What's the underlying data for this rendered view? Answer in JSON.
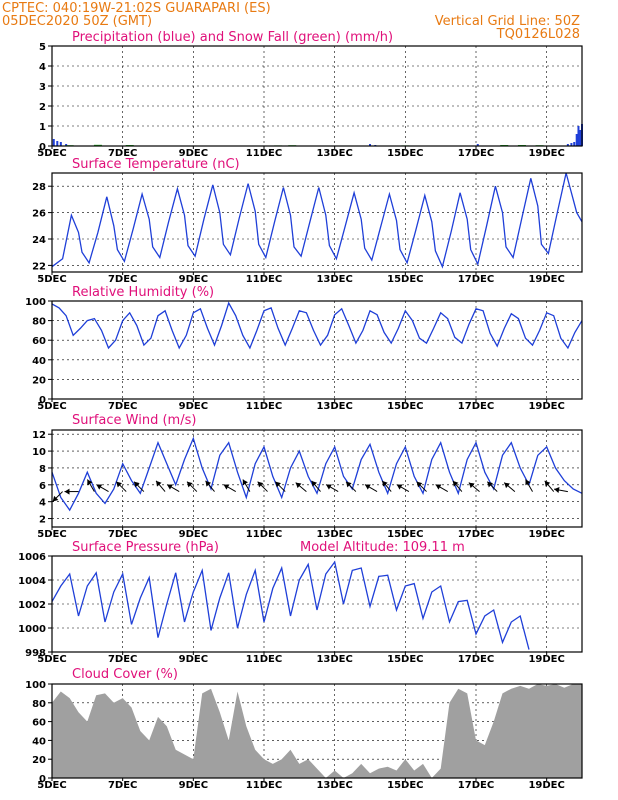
{
  "header": {
    "line1": "CPTEC:  040:19W-21:02S   GUARAPARI (ES)",
    "line2": "05DEC2020 50Z (GMT)",
    "grid_note": "Vertical Grid Line: 50Z",
    "code": "TQ0126L028"
  },
  "colors": {
    "header": "#e87a12",
    "title": "#e0107a",
    "line": "#1f3fd8",
    "snow": "#22aa22",
    "cloud": "#a0a0a0",
    "frame": "#000000"
  },
  "x_axis": {
    "ticks": [
      "5DEC",
      "7DEC",
      "9DEC",
      "11DEC",
      "13DEC",
      "15DEC",
      "17DEC",
      "19DEC"
    ],
    "tick_days": [
      0,
      2,
      4,
      6,
      8,
      10,
      12,
      14
    ],
    "range_days": [
      0,
      15
    ]
  },
  "chart_data": [
    {
      "type": "bar",
      "title": "Precipitation (blue) and Snow Fall (green) (mm/h)",
      "ylim": [
        0,
        5
      ],
      "yticks": [
        "0",
        "1",
        "2",
        "3",
        "4",
        "5"
      ],
      "x_unit": "days since 05DEC",
      "precip_x": [
        0.05,
        0.15,
        0.25,
        0.4,
        9.0,
        9.15,
        12.05,
        14.6,
        14.7,
        14.78,
        14.85,
        14.9,
        14.95,
        15.0
      ],
      "precip": [
        0.35,
        0.25,
        0.2,
        0.1,
        0.1,
        0.05,
        0.1,
        0.1,
        0.15,
        0.2,
        0.6,
        1.0,
        0.8,
        1.1
      ],
      "snow_x": [
        0.5,
        1.3,
        2.2,
        6.4,
        6.8,
        10.0,
        12.8,
        13.3,
        13.8
      ],
      "snow": [
        0.04,
        0.06,
        0.05,
        0.03,
        0.04,
        0.03,
        0.05,
        0.05,
        0.04
      ]
    },
    {
      "type": "line",
      "title": "Surface Temperature (nC)",
      "ylim": [
        21.5,
        29
      ],
      "yticks": [
        "22",
        "24",
        "26",
        "28"
      ],
      "ytick_values": [
        22,
        24,
        26,
        28
      ],
      "x_unit": "days since 05DEC",
      "x": [
        0,
        0.3,
        0.55,
        0.75,
        0.85,
        1.05,
        1.3,
        1.55,
        1.75,
        1.85,
        2.05,
        2.3,
        2.55,
        2.75,
        2.85,
        3.05,
        3.3,
        3.55,
        3.75,
        3.85,
        4.05,
        4.3,
        4.55,
        4.75,
        4.85,
        5.05,
        5.3,
        5.55,
        5.75,
        5.85,
        6.05,
        6.3,
        6.55,
        6.75,
        6.85,
        7.05,
        7.3,
        7.55,
        7.75,
        7.85,
        8.05,
        8.3,
        8.55,
        8.75,
        8.85,
        9.05,
        9.3,
        9.55,
        9.75,
        9.85,
        10.05,
        10.3,
        10.55,
        10.75,
        10.85,
        11.05,
        11.3,
        11.55,
        11.75,
        11.85,
        12.05,
        12.3,
        12.55,
        12.75,
        12.85,
        13.05,
        13.3,
        13.55,
        13.75,
        13.85,
        14.05,
        14.3,
        14.55,
        14.75,
        14.85,
        15.0
      ],
      "y": [
        21.9,
        22.5,
        25.8,
        24.5,
        23.0,
        22.2,
        24.5,
        27.2,
        25.0,
        23.2,
        22.3,
        24.8,
        27.4,
        25.5,
        23.4,
        22.6,
        25.3,
        27.8,
        25.8,
        23.5,
        22.7,
        25.5,
        28.1,
        26.0,
        23.6,
        22.8,
        25.6,
        28.2,
        26.1,
        23.6,
        22.6,
        25.3,
        27.9,
        25.8,
        23.4,
        22.7,
        25.3,
        27.9,
        25.8,
        23.5,
        22.5,
        25.0,
        27.5,
        25.5,
        23.3,
        22.4,
        24.9,
        27.4,
        25.4,
        23.2,
        22.2,
        24.7,
        27.3,
        25.3,
        23.1,
        21.9,
        24.6,
        27.5,
        25.5,
        23.2,
        22.1,
        25.0,
        28.0,
        26.0,
        23.4,
        22.6,
        25.6,
        28.6,
        26.5,
        23.6,
        22.9,
        26.0,
        29.0,
        27.0,
        26.0,
        25.3
      ]
    },
    {
      "type": "line",
      "title": "Relative Humidity (%)",
      "ylim": [
        0,
        100
      ],
      "yticks": [
        "0",
        "20",
        "40",
        "60",
        "80",
        "100"
      ],
      "ytick_values": [
        0,
        20,
        40,
        60,
        80,
        100
      ],
      "x_unit": "days since 05DEC",
      "x": [
        0,
        0.2,
        0.4,
        0.6,
        0.8,
        1.0,
        1.2,
        1.4,
        1.6,
        1.8,
        2.0,
        2.2,
        2.4,
        2.6,
        2.8,
        3.0,
        3.2,
        3.4,
        3.6,
        3.8,
        4.0,
        4.2,
        4.4,
        4.6,
        4.8,
        5.0,
        5.2,
        5.4,
        5.6,
        5.8,
        6.0,
        6.2,
        6.4,
        6.6,
        6.8,
        7.0,
        7.2,
        7.4,
        7.6,
        7.8,
        8.0,
        8.2,
        8.4,
        8.6,
        8.8,
        9.0,
        9.2,
        9.4,
        9.6,
        9.8,
        10.0,
        10.2,
        10.4,
        10.6,
        10.8,
        11.0,
        11.2,
        11.4,
        11.6,
        11.8,
        12.0,
        12.2,
        12.4,
        12.6,
        12.8,
        13.0,
        13.2,
        13.4,
        13.6,
        13.8,
        14.0,
        14.2,
        14.4,
        14.6,
        14.8,
        15.0
      ],
      "y": [
        97,
        93,
        85,
        65,
        72,
        80,
        82,
        70,
        52,
        60,
        80,
        88,
        75,
        55,
        62,
        85,
        90,
        70,
        52,
        65,
        88,
        92,
        72,
        55,
        75,
        98,
        85,
        65,
        52,
        70,
        90,
        93,
        72,
        55,
        72,
        90,
        88,
        70,
        55,
        65,
        86,
        92,
        75,
        57,
        70,
        90,
        86,
        68,
        57,
        72,
        90,
        80,
        62,
        57,
        72,
        88,
        82,
        63,
        57,
        76,
        92,
        90,
        67,
        54,
        72,
        87,
        82,
        62,
        55,
        70,
        88,
        85,
        62,
        52,
        68,
        80
      ]
    },
    {
      "type": "line",
      "title": "Surface Wind (m/s)",
      "ylim": [
        1,
        12.5
      ],
      "yticks": [
        "2",
        "4",
        "6",
        "8",
        "10",
        "12"
      ],
      "ytick_values": [
        2,
        4,
        6,
        8,
        10,
        12
      ],
      "x_unit": "days since 05DEC",
      "x": [
        0,
        0.25,
        0.5,
        0.75,
        1.0,
        1.25,
        1.5,
        1.75,
        2.0,
        2.25,
        2.5,
        2.75,
        3.0,
        3.25,
        3.5,
        3.75,
        4.0,
        4.25,
        4.5,
        4.75,
        5.0,
        5.25,
        5.5,
        5.75,
        6.0,
        6.25,
        6.5,
        6.75,
        7.0,
        7.25,
        7.5,
        7.75,
        8.0,
        8.25,
        8.5,
        8.75,
        9.0,
        9.25,
        9.5,
        9.75,
        10.0,
        10.25,
        10.5,
        10.75,
        11.0,
        11.25,
        11.5,
        11.75,
        12.0,
        12.25,
        12.5,
        12.75,
        13.0,
        13.25,
        13.5,
        13.75,
        14.0,
        14.25,
        14.5,
        14.75,
        15.0
      ],
      "y": [
        7.5,
        4.5,
        3.0,
        5.0,
        7.5,
        5.0,
        3.8,
        5.5,
        8.5,
        6.5,
        5.0,
        8.0,
        11.0,
        8.5,
        6.0,
        9.0,
        11.5,
        8.0,
        5.5,
        9.5,
        11.0,
        7.5,
        4.5,
        8.5,
        10.5,
        7.0,
        4.5,
        8.0,
        10.0,
        7.0,
        5.0,
        8.5,
        10.5,
        7.0,
        5.5,
        9.0,
        10.8,
        7.5,
        5.0,
        8.5,
        10.5,
        7.0,
        5.0,
        9.0,
        11.0,
        7.5,
        5.0,
        9.0,
        11.0,
        7.5,
        5.5,
        9.5,
        11.0,
        8.0,
        6.0,
        9.5,
        10.5,
        8.0,
        6.5,
        5.5,
        5.0
      ],
      "barbs": [
        [
          0.3,
          225
        ],
        [
          0.75,
          270
        ],
        [
          1.2,
          330
        ],
        [
          1.6,
          300
        ],
        [
          2.1,
          315
        ],
        [
          2.6,
          315
        ],
        [
          3.2,
          320
        ],
        [
          3.6,
          300
        ],
        [
          4.1,
          315
        ],
        [
          4.6,
          320
        ],
        [
          5.2,
          300
        ],
        [
          5.6,
          330
        ],
        [
          6.1,
          315
        ],
        [
          6.6,
          315
        ],
        [
          7.2,
          310
        ],
        [
          7.6,
          320
        ],
        [
          8.1,
          300
        ],
        [
          8.6,
          315
        ],
        [
          9.2,
          300
        ],
        [
          9.6,
          320
        ],
        [
          10.1,
          300
        ],
        [
          10.6,
          315
        ],
        [
          11.2,
          300
        ],
        [
          11.6,
          320
        ],
        [
          12.1,
          310
        ],
        [
          12.6,
          315
        ],
        [
          13.1,
          310
        ],
        [
          13.6,
          330
        ],
        [
          14.2,
          320
        ],
        [
          14.6,
          280
        ]
      ]
    },
    {
      "type": "line",
      "title": "Surface Pressure (hPa)",
      "annotation": "Model Altitude: 109.11 m",
      "ylim": [
        998,
        1006
      ],
      "yticks": [
        "998",
        "1000",
        "1002",
        "1004",
        "1006"
      ],
      "ytick_values": [
        998,
        1000,
        1002,
        1004,
        1006
      ],
      "x_unit": "days since 05DEC",
      "x": [
        0,
        0.25,
        0.5,
        0.75,
        1.0,
        1.25,
        1.5,
        1.75,
        2.0,
        2.25,
        2.5,
        2.75,
        3.0,
        3.25,
        3.5,
        3.75,
        4.0,
        4.25,
        4.5,
        4.75,
        5.0,
        5.25,
        5.5,
        5.75,
        6.0,
        6.25,
        6.5,
        6.75,
        7.0,
        7.25,
        7.5,
        7.75,
        8.0,
        8.25,
        8.5,
        8.75,
        9.0,
        9.25,
        9.5,
        9.75,
        10.0,
        10.25,
        10.5,
        10.75,
        11.0,
        11.25,
        11.5,
        11.75,
        12.0,
        12.25,
        12.5,
        12.75,
        13.0,
        13.25,
        13.5,
        13.75,
        14.0,
        14.25,
        14.5,
        14.75,
        15.0
      ],
      "y": [
        1002.2,
        1003.5,
        1004.5,
        1001.0,
        1003.5,
        1004.6,
        1000.5,
        1003.0,
        1004.5,
        1000.3,
        1002.5,
        1004.2,
        999.2,
        1002.0,
        1004.6,
        1000.5,
        1003.0,
        1004.8,
        999.8,
        1002.5,
        1004.6,
        1000.0,
        1002.8,
        1004.8,
        1000.5,
        1003.3,
        1005.0,
        1001.0,
        1004.0,
        1005.3,
        1001.5,
        1004.5,
        1005.5,
        1002.0,
        1004.8,
        1005.0,
        1001.8,
        1004.3,
        1004.4,
        1001.5,
        1003.5,
        1003.7,
        1000.8,
        1003.0,
        1003.5,
        1000.5,
        1002.2,
        1002.3,
        999.5,
        1001.0,
        1001.5,
        998.8,
        1000.5,
        1001.0,
        998.2,
        null,
        null,
        null,
        null,
        null,
        null
      ]
    },
    {
      "type": "area",
      "title": "Cloud Cover (%)",
      "ylim": [
        0,
        100
      ],
      "yticks": [
        "0",
        "20",
        "40",
        "60",
        "80",
        "100"
      ],
      "ytick_values": [
        0,
        20,
        40,
        60,
        80,
        100
      ],
      "x_unit": "days since 05DEC",
      "x": [
        0,
        0.25,
        0.5,
        0.75,
        1.0,
        1.25,
        1.5,
        1.75,
        2.0,
        2.25,
        2.5,
        2.75,
        3.0,
        3.25,
        3.5,
        3.75,
        4.0,
        4.25,
        4.5,
        4.75,
        5.0,
        5.25,
        5.5,
        5.75,
        6.0,
        6.25,
        6.5,
        6.75,
        7.0,
        7.25,
        7.5,
        7.75,
        8.0,
        8.25,
        8.5,
        8.75,
        9.0,
        9.25,
        9.5,
        9.75,
        10.0,
        10.25,
        10.5,
        10.75,
        11.0,
        11.25,
        11.5,
        11.75,
        12.0,
        12.25,
        12.5,
        12.75,
        13.0,
        13.25,
        13.5,
        13.75,
        14.0,
        14.25,
        14.5,
        14.75,
        15.0
      ],
      "y": [
        80,
        92,
        85,
        70,
        60,
        88,
        90,
        80,
        85,
        75,
        50,
        40,
        65,
        55,
        30,
        25,
        20,
        90,
        95,
        70,
        40,
        92,
        55,
        30,
        20,
        15,
        20,
        30,
        15,
        20,
        10,
        0,
        8,
        0,
        5,
        15,
        5,
        10,
        12,
        8,
        20,
        8,
        15,
        0,
        10,
        80,
        95,
        90,
        40,
        35,
        60,
        90,
        95,
        98,
        95,
        100,
        98,
        100,
        96,
        100,
        100
      ]
    }
  ]
}
